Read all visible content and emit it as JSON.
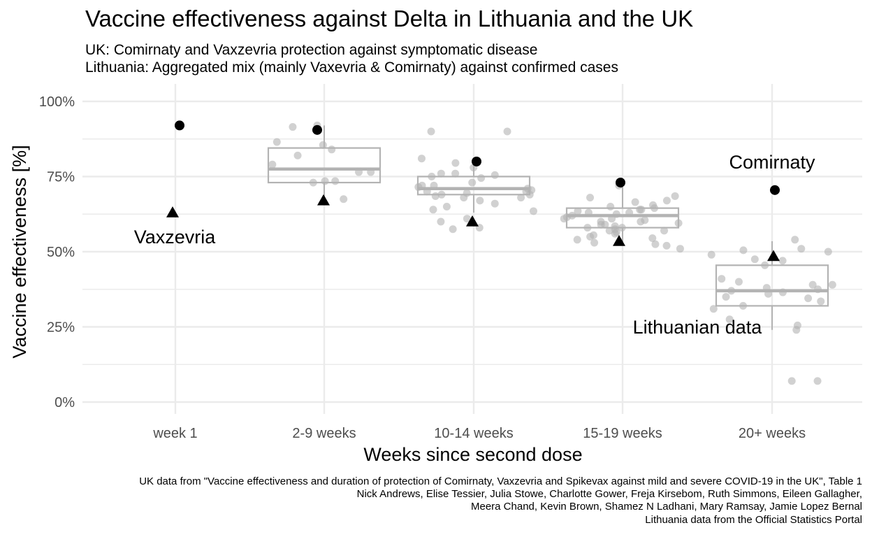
{
  "title": "Vaccine effectiveness against Delta in Lithuania and the UK",
  "subtitle_lines": [
    "UK: Comirnaty and Vaxzevria protection against symptomatic disease",
    "Lithuania: Aggregated mix (mainly Vaxevria & Comirnaty) against confirmed cases"
  ],
  "caption_lines": [
    "UK data from \"Vaccine effectiveness and duration of protection of Comirnaty, Vaxzevria and Spikevax against mild and severe COVID-19 in the UK\", Table 1",
    "Nick Andrews, Elise Tessier, Julia Stowe, Charlotte Gower, Freja Kirsebom, Ruth Simmons, Eileen Gallagher,",
    "Meera Chand, Kevin Brown, Shamez N Ladhani, Mary Ramsay, Jamie Lopez Bernal",
    "Lithuania data from the Official Statistics Portal"
  ],
  "chart_data": {
    "type": "boxplot+scatter",
    "xlabel": "Weeks since second dose",
    "ylabel": "Vaccine effectiveness [%]",
    "categories": [
      "week 1",
      "2-9 weeks",
      "10-14 weeks",
      "15-19 weeks",
      "20+ weeks"
    ],
    "ylim": [
      -4,
      102
    ],
    "yticks": [
      0,
      25,
      50,
      75,
      100
    ],
    "ytick_labels": [
      "0%",
      "25%",
      "50%",
      "75%",
      "100%"
    ],
    "grid": true,
    "colors": {
      "uk_marker": "#000000",
      "lithuania": "#b3b3b3",
      "grid": "#ebebeb"
    },
    "series": [
      {
        "name": "Comirnaty",
        "marker": "circle",
        "values": [
          92,
          90.5,
          80,
          73,
          70.5
        ]
      },
      {
        "name": "Vaxzevria",
        "marker": "triangle",
        "values": [
          63,
          67,
          60,
          53.5,
          48.5
        ]
      },
      {
        "name": "Lithuanian data",
        "marker": "point",
        "values": [
          [],
          [
            85.5,
            84,
            86.5,
            91.5,
            92,
            73.5,
            79,
            76.5,
            73.5,
            73,
            82,
            76.5,
            67.5
          ],
          [
            81,
            78,
            76,
            75.5,
            75,
            74.5,
            73,
            72,
            71.5,
            71,
            70.5,
            70,
            69.5,
            69,
            68.5,
            68,
            67,
            66,
            65,
            64,
            63.5,
            61,
            60,
            58,
            57.5,
            90,
            90,
            79.5,
            76,
            72,
            70,
            69,
            68
          ],
          [
            72,
            68,
            66.5,
            65,
            64.5,
            64,
            63.5,
            63,
            62.5,
            62,
            61.5,
            61,
            60.5,
            60,
            59.5,
            59,
            58.5,
            58,
            57.5,
            57,
            56.5,
            56,
            55.5,
            55,
            54.5,
            54,
            53,
            52.5,
            52,
            51,
            68.5,
            67,
            65.5,
            64,
            63,
            61,
            60,
            59,
            58,
            57
          ],
          [
            54,
            51,
            50.5,
            50,
            49,
            47.5,
            47,
            45.5,
            41,
            39,
            38,
            37.5,
            36.5,
            36,
            35,
            34.5,
            33.5,
            32,
            31,
            27.5,
            25.5,
            24,
            7,
            7,
            40,
            39,
            37
          ]
        ]
      }
    ],
    "boxes": [
      null,
      {
        "q1": 73,
        "median": 77.5,
        "q3": 84.5,
        "whisker_low": 66,
        "whisker_high": 92
      },
      {
        "q1": 69,
        "median": 71,
        "q3": 75,
        "whisker_low": 63,
        "whisker_high": 81
      },
      {
        "q1": 58,
        "median": 62,
        "q3": 64.5,
        "whisker_low": 52,
        "whisker_high": 72
      },
      {
        "q1": 32,
        "median": 37,
        "q3": 45.5,
        "whisker_low": 24,
        "whisker_high": 53.5
      }
    ],
    "annotations": [
      "Comirnaty",
      "Vaxzevria",
      "Lithuanian data"
    ]
  }
}
